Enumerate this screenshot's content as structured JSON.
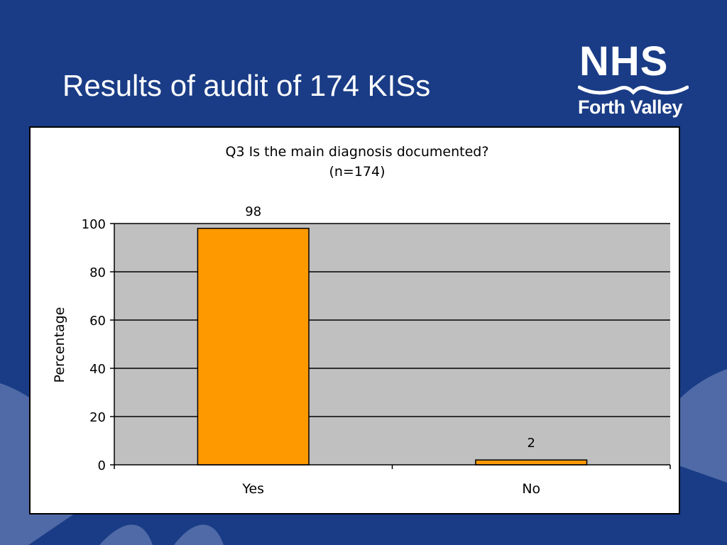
{
  "slide": {
    "title": "Results of audit of 174 KISs",
    "logo": {
      "mark": "NHS",
      "subtitle": "Forth Valley",
      "color": "#ffffff"
    },
    "colors": {
      "background": "#1a3c86",
      "swoosh": "#4f6aa6"
    }
  },
  "chart_data": {
    "type": "bar",
    "title": "Q3 Is the main diagnosis documented?",
    "subtitle": "(n=174)",
    "categories": [
      "Yes",
      "No"
    ],
    "values": [
      98,
      2
    ],
    "data_labels": [
      "98",
      "2"
    ],
    "xlabel": "",
    "ylabel": "Percentage",
    "ylim": [
      0,
      100
    ],
    "yticks": [
      0,
      20,
      40,
      60,
      80,
      100
    ],
    "grid": true,
    "legend": "none",
    "colors": {
      "bar": "#ff9900",
      "bar_edge": "#000000",
      "plot_background": "#c0c0c0",
      "gridline": "#000000"
    }
  }
}
